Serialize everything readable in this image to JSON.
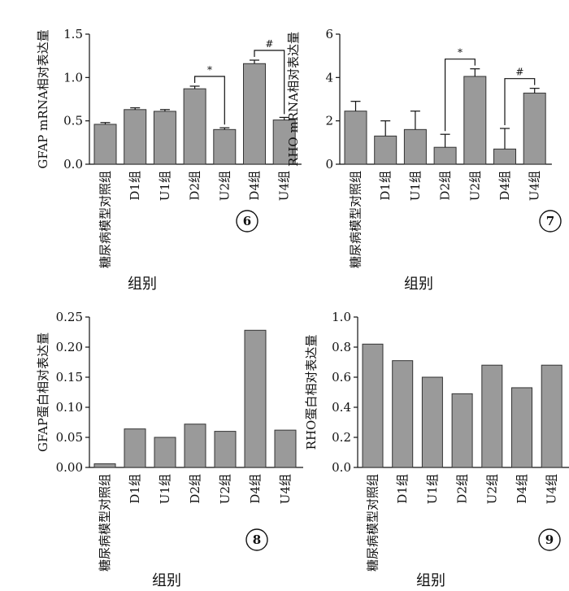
{
  "figure": {
    "x_axis_label": "组别"
  },
  "chart_data": [
    {
      "type": "bar",
      "panel": "6",
      "ylabel": "GFAP mRNA相对表达量",
      "xlabel": "组别",
      "categories": [
        "糖尿病模型对照组",
        "D1组",
        "U1组",
        "D2组",
        "U2组",
        "D4组",
        "U4组"
      ],
      "values": [
        0.46,
        0.63,
        0.61,
        0.87,
        0.4,
        1.16,
        0.51
      ],
      "errors": [
        0.02,
        0.02,
        0.02,
        0.03,
        0.02,
        0.04,
        0.03
      ],
      "ylim": [
        0,
        1.5
      ],
      "yticks": [
        "0.0",
        "0.5",
        "1.0",
        "1.5"
      ],
      "brackets": [
        {
          "from": "D2组",
          "to": "U2组",
          "label": "*"
        },
        {
          "from": "D4组",
          "to": "U4组",
          "label": "#"
        }
      ]
    },
    {
      "type": "bar",
      "panel": "7",
      "ylabel": "RHO mRNA相对表达量",
      "xlabel": "组别",
      "categories": [
        "糖尿病模型对照组",
        "D1组",
        "U1组",
        "D2组",
        "U2组",
        "D4组",
        "U4组"
      ],
      "values": [
        2.45,
        1.3,
        1.6,
        0.78,
        4.05,
        0.7,
        3.28
      ],
      "errors": [
        0.45,
        0.7,
        0.85,
        0.6,
        0.35,
        0.95,
        0.22
      ],
      "ylim": [
        0,
        6
      ],
      "yticks": [
        "0",
        "2",
        "4",
        "6"
      ],
      "brackets": [
        {
          "from": "D2组",
          "to": "U2组",
          "label": "*"
        },
        {
          "from": "D4组",
          "to": "U4组",
          "label": "#"
        }
      ]
    },
    {
      "type": "bar",
      "panel": "8",
      "ylabel": "GFAP蛋白相对表达量",
      "xlabel": "组别",
      "categories": [
        "糖尿病模型对照组",
        "D1组",
        "U1组",
        "D2组",
        "U2组",
        "D4组",
        "U4组"
      ],
      "values": [
        0.006,
        0.064,
        0.05,
        0.072,
        0.06,
        0.228,
        0.062
      ],
      "ylim": [
        0,
        0.25
      ],
      "yticks": [
        "0.00",
        "0.05",
        "0.10",
        "0.15",
        "0.20",
        "0.25"
      ]
    },
    {
      "type": "bar",
      "panel": "9",
      "ylabel": "RHO蛋白相对表达量",
      "xlabel": "组别",
      "categories": [
        "糖尿病模型对照组",
        "D1组",
        "U1组",
        "D2组",
        "U2组",
        "D4组",
        "U4组"
      ],
      "values": [
        0.82,
        0.71,
        0.6,
        0.49,
        0.68,
        0.53,
        0.68
      ],
      "ylim": [
        0,
        1.0
      ],
      "yticks": [
        "0.0",
        "0.2",
        "0.4",
        "0.6",
        "0.8",
        "1.0"
      ]
    }
  ],
  "colors": {
    "bar_fill": "#9a9a9a",
    "bar_stroke": "#333333",
    "axis": "#111111"
  }
}
